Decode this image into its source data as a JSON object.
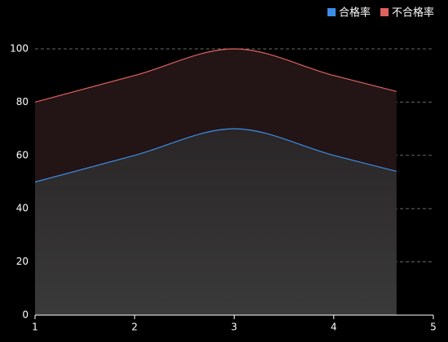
{
  "chart_data": {
    "type": "stacked-area",
    "x": [
      1,
      2,
      3,
      4,
      4.63
    ],
    "series": [
      {
        "name": "合格率",
        "color": "#3a8ee6",
        "values": [
          50,
          60,
          70,
          60,
          54
        ]
      },
      {
        "name": "不合格率",
        "color": "#e0625e",
        "values": [
          30,
          30,
          30,
          30,
          30
        ]
      }
    ],
    "xlim": [
      1,
      5
    ],
    "xticks": [
      1,
      2,
      3,
      4,
      5
    ],
    "ylim": [
      0,
      100
    ],
    "yticks": [
      0,
      20,
      40,
      60,
      80,
      100
    ],
    "grid": true,
    "legend": "top-right"
  }
}
